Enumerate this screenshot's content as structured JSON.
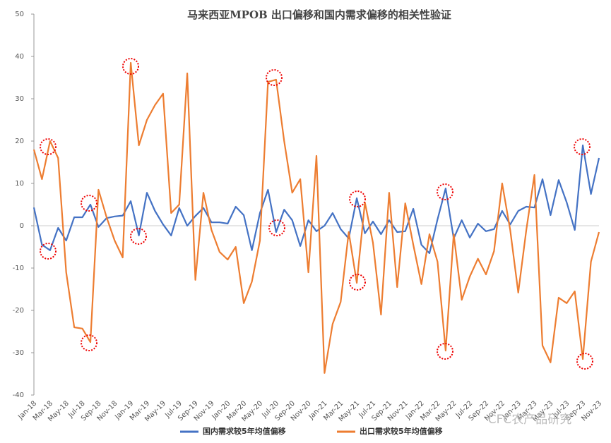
{
  "chart_data": {
    "type": "line",
    "title": "马来西亚MPOB 出口偏移和国内需求偏移的相关性验证",
    "categories": [
      "Jan-18",
      null,
      "Mar-18",
      null,
      "May-18",
      null,
      "Jul-18",
      null,
      "Sep-18",
      null,
      "Nov-18",
      null,
      "Jan-19",
      null,
      "Mar-19",
      null,
      "May-19",
      null,
      "Jul-19",
      null,
      "Sep-19",
      null,
      "Nov-19",
      null,
      "Jan-20",
      null,
      "Mar-20",
      null,
      "May-20",
      null,
      "Jul-20",
      null,
      "Sep-20",
      null,
      "Nov-20",
      null,
      "Jan-21",
      null,
      "Mar-21",
      null,
      "May-21",
      null,
      "Jul-21",
      null,
      "Sep-21",
      null,
      "Nov-21",
      null,
      "Jan-22",
      null,
      "Mar-22",
      null,
      "May-22",
      null,
      "Jul-22",
      null,
      "Sep-22",
      null,
      "Nov-22",
      null,
      "Jan-23",
      null,
      "Mar-23",
      null,
      "May-23",
      null,
      "Jul-23",
      null,
      "Sep-23",
      null,
      "Nov-23"
    ],
    "series": [
      {
        "name": "国内需求较5年均值偏移",
        "color": "#4472c4",
        "values": [
          4.3,
          -4.5,
          -5.8,
          -0.5,
          -3.5,
          2,
          2,
          5,
          -0.3,
          1.8,
          2.2,
          2.4,
          5.8,
          -2.3,
          7.8,
          3.5,
          0.3,
          -2.3,
          4.2,
          0,
          2.3,
          4.2,
          0.8,
          0.8,
          0.5,
          4.5,
          2.5,
          -5.8,
          3,
          8.5,
          -1.5,
          3.8,
          1.3,
          -4.8,
          1.3,
          -1.3,
          0,
          3,
          -0.8,
          -3,
          6.5,
          -1.8,
          1,
          -2,
          1.3,
          -1.5,
          -1.3,
          4,
          -4.5,
          -6.5,
          1.5,
          8.8,
          -3,
          1.3,
          -2.8,
          0.5,
          -1.3,
          -0.8,
          3.5,
          0.3,
          3.5,
          4.5,
          4.3,
          11,
          2.5,
          10.8,
          5.5,
          -1,
          19,
          7.5,
          16
        ]
      },
      {
        "name": "出口需求较5年均值偏移",
        "color": "#ed7d31",
        "values": [
          18,
          11,
          20,
          16,
          -11,
          -24,
          -24.3,
          -27.5,
          8.5,
          2,
          -3.5,
          -7.5,
          38.5,
          19,
          25,
          28.5,
          31.2,
          3,
          5,
          36,
          -12.8,
          7.8,
          -1,
          -6.2,
          -8,
          -5,
          -18.3,
          -13.2,
          -3.5,
          34,
          34.5,
          20,
          7.8,
          11,
          -11,
          16.5,
          -34.8,
          -23.2,
          -18,
          -1.5,
          -13.5,
          5.5,
          -4,
          -21,
          7.8,
          -14.5,
          5.3,
          -4.5,
          -13.8,
          -2,
          -8.5,
          -29.5,
          -2,
          -17.5,
          -12,
          -7.8,
          -11.5,
          -6,
          10,
          -1,
          -15.8,
          -1,
          12,
          -28.3,
          -32.3,
          -17,
          -18.3,
          -15.5,
          -31.5,
          -8.5,
          -1.5
        ]
      }
    ],
    "ylim": [
      -40,
      50
    ],
    "yticks": [
      -40,
      -30,
      -20,
      -10,
      0,
      10,
      20,
      30,
      40,
      50
    ],
    "legend": "bottom",
    "watermark": "CFC农产品研究"
  }
}
